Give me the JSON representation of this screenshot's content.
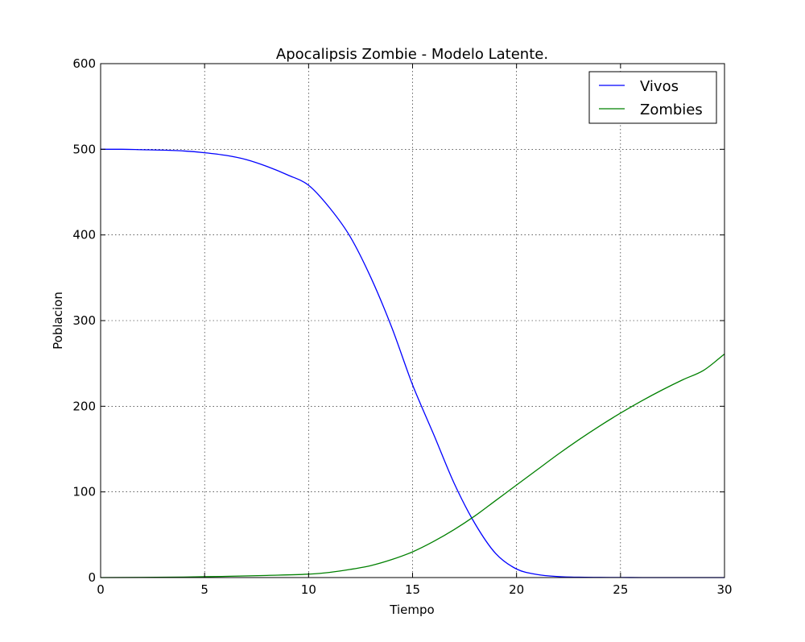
{
  "chart_data": {
    "type": "line",
    "title": "Apocalipsis Zombie - Modelo Latente.",
    "xlabel": "Tiempo",
    "ylabel": "Poblacion",
    "xlim": [
      0,
      30
    ],
    "ylim": [
      0,
      600
    ],
    "xticks": [
      "0",
      "5",
      "10",
      "15",
      "20",
      "25",
      "30"
    ],
    "yticks": [
      "0",
      "100",
      "200",
      "300",
      "400",
      "500",
      "600"
    ],
    "grid": true,
    "legend_position": "top-right",
    "series": [
      {
        "name": "Vivos",
        "color": "#0000ff",
        "x": [
          0,
          1,
          2,
          3,
          4,
          5,
          6,
          7,
          8,
          9,
          10,
          11,
          12,
          13,
          14,
          15,
          15.5,
          16,
          17,
          18,
          19,
          20,
          21,
          22,
          23,
          24,
          25,
          26,
          27,
          28,
          29,
          30
        ],
        "y": [
          500,
          500,
          499.5,
          499,
          498,
          496,
          493,
          488,
          480,
          470,
          458,
          432,
          398,
          350,
          292,
          225,
          196,
          168,
          110,
          63,
          28,
          10,
          3.5,
          1.2,
          0.4,
          0.2,
          0.1,
          0,
          0,
          0,
          0,
          0
        ]
      },
      {
        "name": "Zombies",
        "color": "#008000",
        "x": [
          0,
          2,
          4,
          6,
          8,
          10,
          11,
          12,
          13,
          14,
          15,
          16,
          17,
          18,
          19,
          20,
          21,
          22,
          23,
          24,
          25,
          26,
          27,
          28,
          29,
          30
        ],
        "y": [
          0,
          0.2,
          0.6,
          1.4,
          2.5,
          4,
          6,
          9.5,
          14,
          21,
          30,
          42,
          56,
          72,
          90,
          108,
          126,
          144,
          161,
          177,
          192,
          206,
          219,
          231,
          242,
          261
        ]
      }
    ]
  }
}
